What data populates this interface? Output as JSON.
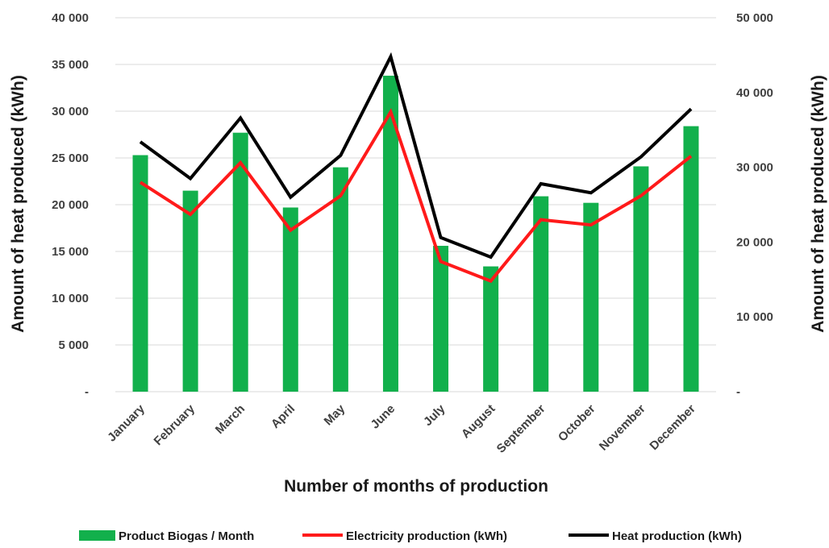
{
  "chart_data": {
    "type": "bar",
    "categories": [
      "January",
      "February",
      "March",
      "April",
      "May",
      "June",
      "July",
      "August",
      "September",
      "October",
      "November",
      "December"
    ],
    "series": [
      {
        "name": "Product Biogas / Month",
        "type": "bar",
        "axis": "left",
        "color": "#12b04c",
        "values": [
          25300,
          21500,
          27700,
          19700,
          24000,
          33800,
          15600,
          13400,
          20900,
          20200,
          24100,
          28400
        ]
      },
      {
        "name": "Electricity production (kWh)",
        "type": "line",
        "axis": "right",
        "color": "#ff1a1a",
        "values": [
          28000,
          23700,
          30600,
          21600,
          26200,
          37400,
          17400,
          14800,
          23000,
          22300,
          26200,
          31500
        ]
      },
      {
        "name": "Heat production (kWh)",
        "type": "line",
        "axis": "right",
        "color": "#000000",
        "values": [
          33400,
          28500,
          36600,
          26000,
          31600,
          44800,
          20600,
          18000,
          27800,
          26600,
          31400,
          37800
        ]
      }
    ],
    "xlabel": "Number of months of production",
    "ylabel_left": "Amount of heat produced (kWh)",
    "ylabel_right": "Amount of heat produced (kWh)",
    "ylim_left": [
      0,
      40000
    ],
    "ylim_right": [
      0,
      50000
    ],
    "yticks_left": [
      "-",
      "5 000",
      "10 000",
      "15 000",
      "20 000",
      "25 000",
      "30 000",
      "35 000",
      "40 000"
    ],
    "yticks_right": [
      "-",
      "10 000",
      "20 000",
      "30 000",
      "40 000",
      "50 000"
    ],
    "grid": true,
    "legend_position": "bottom"
  }
}
